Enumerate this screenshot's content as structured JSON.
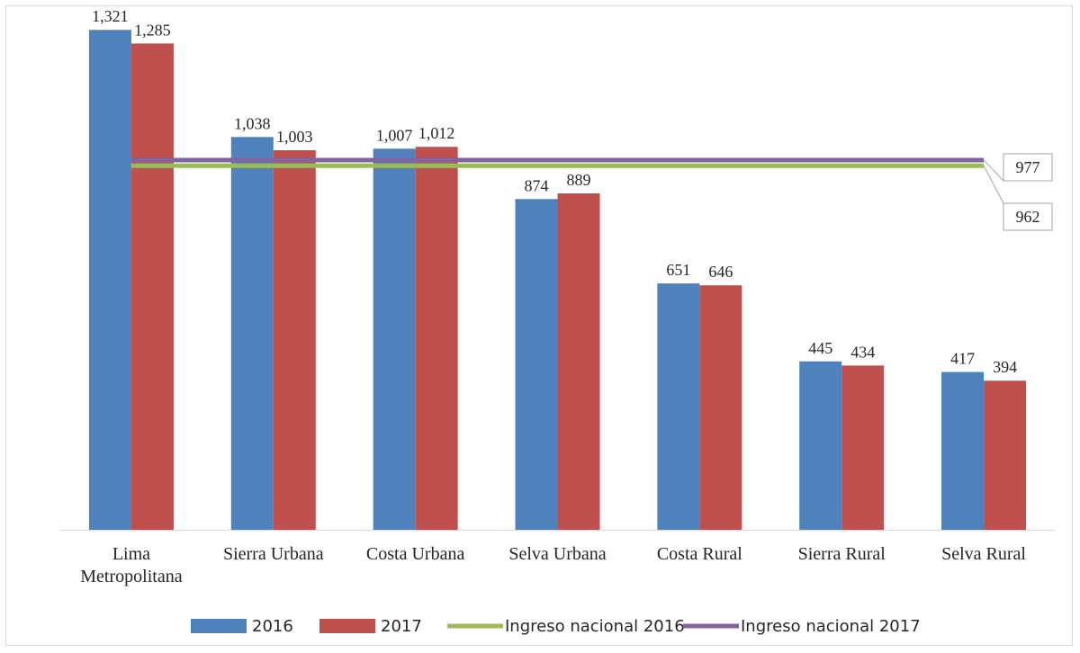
{
  "chart_data": {
    "type": "bar",
    "categories": [
      "Lima Metropolitana",
      "Sierra Urbana",
      "Costa Urbana",
      "Selva Urbana",
      "Costa Rural",
      "Sierra Rural",
      "Selva Rural"
    ],
    "category_label_lines": [
      [
        "Lima",
        "Metropolitana"
      ],
      [
        "Sierra Urbana"
      ],
      [
        "Costa Urbana"
      ],
      [
        "Selva Urbana"
      ],
      [
        "Costa Rural"
      ],
      [
        "Sierra Rural"
      ],
      [
        "Selva Rural"
      ]
    ],
    "series": [
      {
        "name": "2016",
        "kind": "bar",
        "color": "#4f81bd",
        "values": [
          1321,
          1038,
          1007,
          874,
          651,
          445,
          417
        ],
        "labels": [
          "1,321",
          "1,038",
          "1,007",
          "874",
          "651",
          "445",
          "417"
        ]
      },
      {
        "name": "2017",
        "kind": "bar",
        "color": "#c0504d",
        "values": [
          1285,
          1003,
          1012,
          889,
          646,
          434,
          394
        ],
        "labels": [
          "1,285",
          "1,003",
          "1,012",
          "889",
          "646",
          "434",
          "394"
        ]
      },
      {
        "name": "Ingreso nacional 2016",
        "kind": "line",
        "color": "#9bbb59",
        "value": 962,
        "label": "962"
      },
      {
        "name": "Ingreso nacional 2017",
        "kind": "line",
        "color": "#8064a2",
        "value": 977,
        "label": "977"
      }
    ],
    "ylim": [
      0,
      1400
    ],
    "title": "",
    "xlabel": "",
    "ylabel": "",
    "grid": false,
    "legend_position": "bottom"
  }
}
